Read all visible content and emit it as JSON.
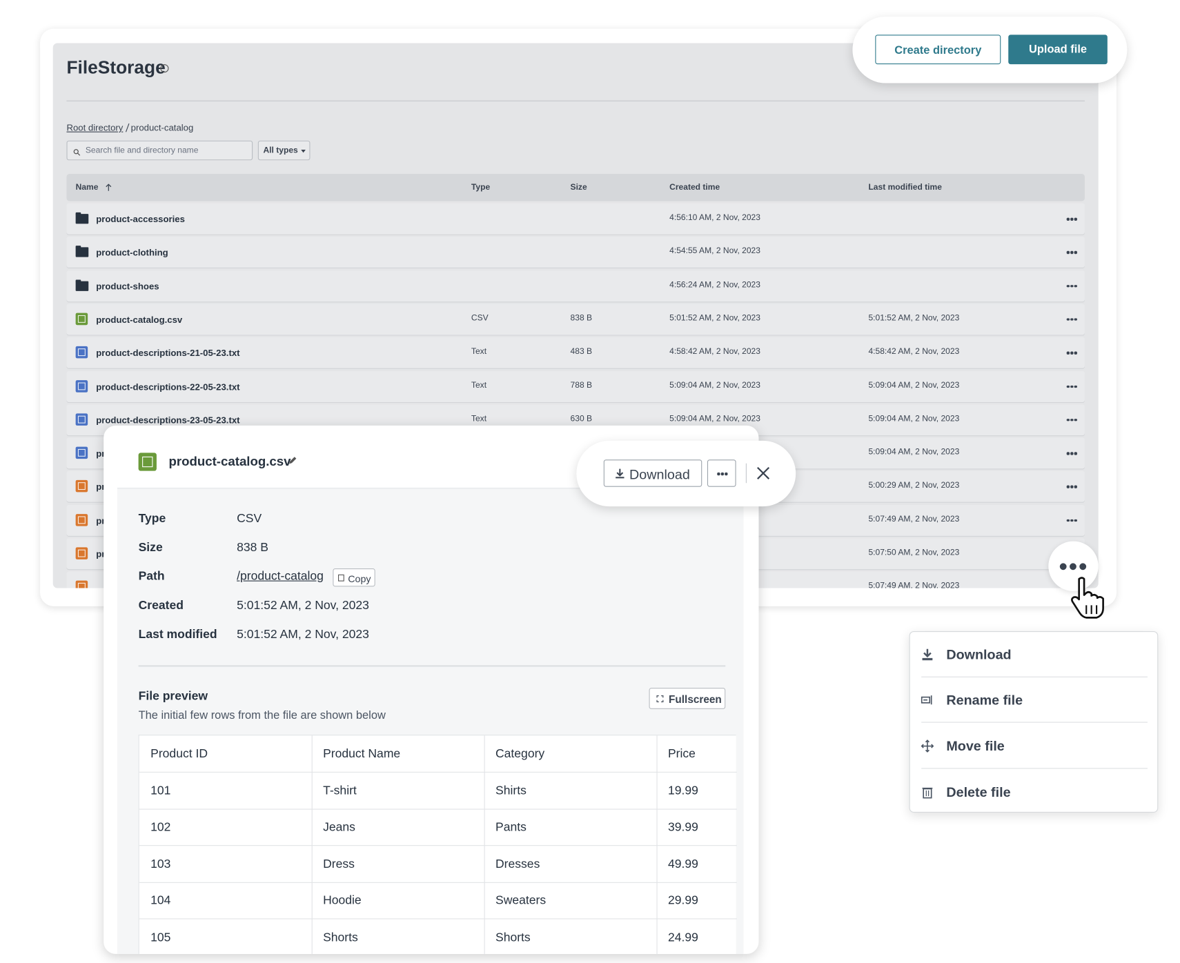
{
  "header": {
    "title": "FileStorage",
    "create_button": "Create directory",
    "upload_button": "Upload file"
  },
  "breadcrumb": {
    "root": "Root directory",
    "current": "product-catalog"
  },
  "filters": {
    "search_placeholder": "Search file and directory name",
    "type_filter": "All types"
  },
  "file_table": {
    "columns": [
      "Name",
      "Type",
      "Size",
      "Created time",
      "Last modified time"
    ],
    "rows": [
      {
        "kind": "folder",
        "name": "product-accessories",
        "created": "4:56:10 AM, 2 Nov, 2023"
      },
      {
        "kind": "folder",
        "name": "product-clothing",
        "created": "4:54:55 AM, 2 Nov, 2023"
      },
      {
        "kind": "folder",
        "name": "product-shoes",
        "created": "4:56:24 AM, 2 Nov, 2023"
      },
      {
        "kind": "csv",
        "name": "product-catalog.csv",
        "type": "CSV",
        "size": "838 B",
        "created": "5:01:52 AM, 2 Nov, 2023",
        "modified": "5:01:52 AM, 2 Nov, 2023"
      },
      {
        "kind": "text",
        "name": "product-descriptions-21-05-23.txt",
        "type": "Text",
        "size": "483 B",
        "created": "4:58:42 AM, 2 Nov, 2023",
        "modified": "4:58:42 AM, 2 Nov, 2023"
      },
      {
        "kind": "text",
        "name": "product-descriptions-22-05-23.txt",
        "type": "Text",
        "size": "788 B",
        "created": "5:09:04 AM, 2 Nov, 2023",
        "modified": "5:09:04 AM, 2 Nov, 2023"
      },
      {
        "kind": "text",
        "name": "product-descriptions-23-05-23.txt",
        "type": "Text",
        "size": "630 B",
        "created": "5:09:04 AM, 2 Nov, 2023",
        "modified": "5:09:04 AM, 2 Nov, 2023"
      },
      {
        "kind": "text",
        "name": "pr",
        "modified": "5:09:04 AM, 2 Nov, 2023"
      },
      {
        "kind": "image",
        "name": "pr",
        "modified": "5:00:29 AM, 2 Nov, 2023"
      },
      {
        "kind": "image",
        "name": "pr",
        "modified": "5:07:49 AM, 2 Nov, 2023"
      },
      {
        "kind": "image",
        "name": "pr",
        "modified": "5:07:50 AM, 2 Nov, 2023"
      },
      {
        "kind": "image",
        "modified": "5:07:49 AM, 2 Nov, 2023"
      }
    ]
  },
  "details_panel": {
    "file_name": "product-catalog.csv",
    "download_button": "Download",
    "details": [
      {
        "label": "Type",
        "value": "CSV"
      },
      {
        "label": "Size",
        "value": "838 B"
      },
      {
        "label": "Path",
        "value": "/product-catalog"
      },
      {
        "label": "Created",
        "value": "5:01:52 AM, 2 Nov, 2023"
      },
      {
        "label": "Last modified",
        "value": "5:01:52 AM, 2 Nov, 2023"
      }
    ],
    "copy_button": "Copy",
    "preview_title": "File preview",
    "preview_subtitle": "The initial few rows from the file are shown below",
    "fullscreen_button": "Fullscreen",
    "preview_table": {
      "columns": [
        "Product ID",
        "Product Name",
        "Category",
        "Price"
      ],
      "rows": [
        [
          "101",
          "T-shirt",
          "Shirts",
          "19.99"
        ],
        [
          "102",
          "Jeans",
          "Pants",
          "39.99"
        ],
        [
          "103",
          "Dress",
          "Dresses",
          "49.99"
        ],
        [
          "104",
          "Hoodie",
          "Sweaters",
          "29.99"
        ],
        [
          "105",
          "Shorts",
          "Shorts",
          "24.99"
        ]
      ]
    }
  },
  "context_menu": {
    "items": [
      "Download",
      "Rename file",
      "Move file",
      "Delete file"
    ]
  }
}
